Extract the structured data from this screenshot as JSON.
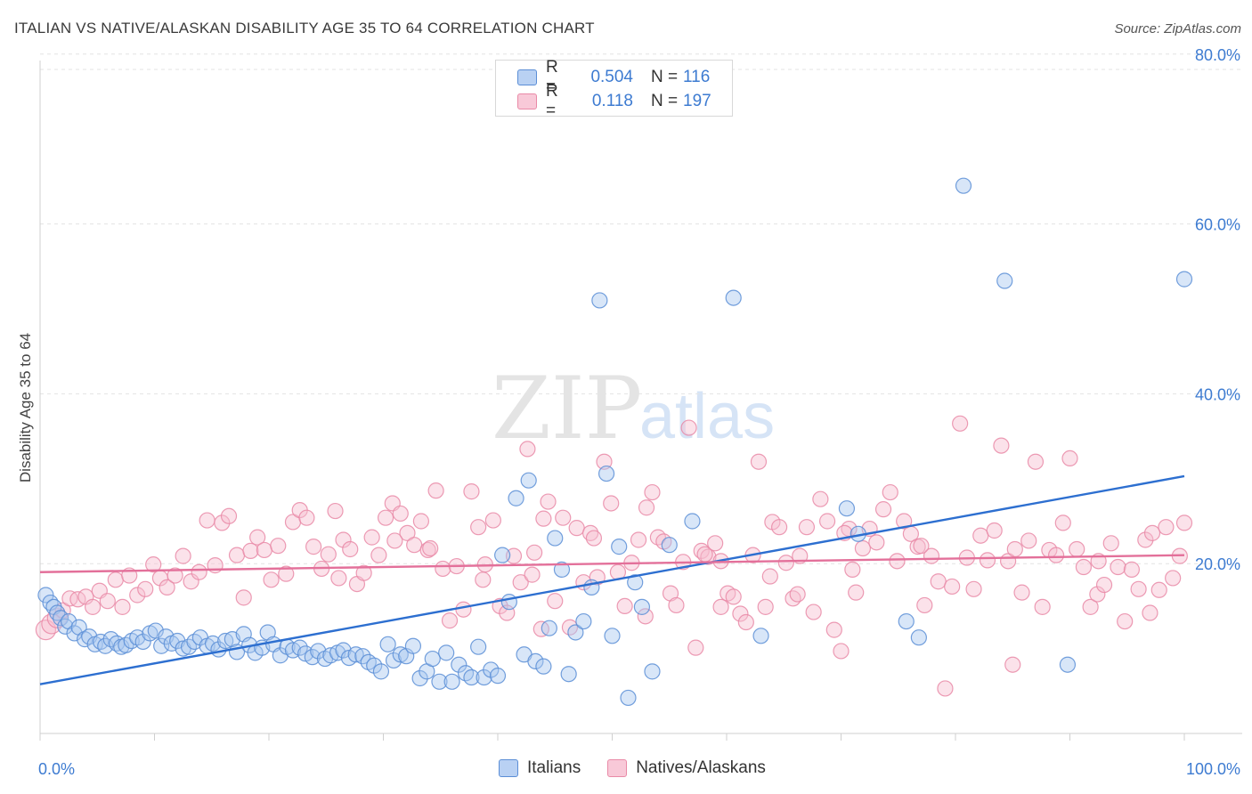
{
  "title": "ITALIAN VS NATIVE/ALASKAN DISABILITY AGE 35 TO 64 CORRELATION CHART",
  "source": "Source: ZipAtlas.com",
  "watermark": {
    "zip": "ZIP",
    "atlas": "atlas"
  },
  "legend": {
    "r_label": "R =",
    "n_label": "N =",
    "rows": [
      {
        "r_value": "0.504",
        "n_value": "116",
        "color": "#5b8ed6"
      },
      {
        "r_value": "0.118",
        "n_value": "197",
        "color": "#e98aa7"
      }
    ]
  },
  "bottom_legend": [
    {
      "label": "Italians",
      "color": "#5b8ed6"
    },
    {
      "label": "Natives/Alaskans",
      "color": "#e98aa7"
    }
  ],
  "chart_data": {
    "type": "scatter",
    "title": "ITALIAN VS NATIVE/ALASKAN DISABILITY AGE 35 TO 64 CORRELATION CHART",
    "xlabel": "",
    "ylabel": "Disability Age 35 to 64",
    "xlim": [
      0,
      100
    ],
    "ylim": [
      0,
      85
    ],
    "x_tick_labels": [
      "0.0%",
      "100.0%"
    ],
    "y_ticks": [
      20,
      40,
      60,
      80
    ],
    "y_tick_labels": [
      "20.0%",
      "40.0%",
      "60.0%",
      "80.0%"
    ],
    "grid": true,
    "series": [
      {
        "name": "Italians",
        "color": "#5b8ed6",
        "fill": "#a9c7f0",
        "trend": {
          "x": [
            0,
            100
          ],
          "y": [
            5.8,
            30.3
          ]
        },
        "points": [
          [
            0.5,
            16.3
          ],
          [
            0.9,
            15.4
          ],
          [
            1.2,
            14.9
          ],
          [
            1.5,
            14.2
          ],
          [
            1.8,
            13.6
          ],
          [
            2.2,
            12.6
          ],
          [
            2.5,
            13.2
          ],
          [
            3.0,
            11.8
          ],
          [
            3.4,
            12.5
          ],
          [
            3.9,
            11.1
          ],
          [
            4.3,
            11.4
          ],
          [
            4.8,
            10.5
          ],
          [
            5.3,
            10.8
          ],
          [
            5.7,
            10.3
          ],
          [
            6.2,
            11.1
          ],
          [
            6.7,
            10.6
          ],
          [
            7.1,
            10.2
          ],
          [
            7.5,
            10.4
          ],
          [
            8.0,
            10.9
          ],
          [
            8.5,
            11.3
          ],
          [
            9.0,
            10.8
          ],
          [
            9.6,
            11.8
          ],
          [
            10.1,
            12.1
          ],
          [
            10.6,
            10.3
          ],
          [
            11.0,
            11.4
          ],
          [
            11.5,
            10.6
          ],
          [
            12.0,
            10.9
          ],
          [
            12.5,
            10.0
          ],
          [
            13.0,
            10.2
          ],
          [
            13.5,
            10.8
          ],
          [
            14.0,
            11.3
          ],
          [
            14.6,
            10.3
          ],
          [
            15.1,
            10.6
          ],
          [
            15.6,
            9.9
          ],
          [
            16.2,
            10.9
          ],
          [
            16.8,
            11.1
          ],
          [
            17.2,
            9.6
          ],
          [
            17.8,
            11.7
          ],
          [
            18.3,
            10.4
          ],
          [
            18.8,
            9.5
          ],
          [
            19.4,
            10.1
          ],
          [
            19.9,
            11.9
          ],
          [
            20.4,
            10.5
          ],
          [
            21.0,
            9.2
          ],
          [
            21.6,
            10.2
          ],
          [
            22.1,
            9.8
          ],
          [
            22.7,
            10.1
          ],
          [
            23.2,
            9.4
          ],
          [
            23.8,
            9.0
          ],
          [
            24.3,
            9.7
          ],
          [
            24.9,
            8.8
          ],
          [
            25.4,
            9.2
          ],
          [
            26.0,
            9.5
          ],
          [
            26.5,
            9.8
          ],
          [
            27.0,
            8.9
          ],
          [
            27.6,
            9.3
          ],
          [
            28.2,
            9.1
          ],
          [
            28.7,
            8.4
          ],
          [
            29.2,
            8.0
          ],
          [
            29.8,
            7.3
          ],
          [
            30.4,
            10.5
          ],
          [
            30.9,
            8.6
          ],
          [
            31.5,
            9.3
          ],
          [
            32.0,
            9.1
          ],
          [
            32.6,
            10.3
          ],
          [
            33.2,
            6.5
          ],
          [
            33.8,
            7.3
          ],
          [
            34.3,
            8.8
          ],
          [
            34.9,
            6.1
          ],
          [
            35.5,
            9.5
          ],
          [
            36.0,
            6.1
          ],
          [
            36.6,
            8.1
          ],
          [
            37.2,
            7.1
          ],
          [
            37.7,
            6.6
          ],
          [
            38.3,
            10.2
          ],
          [
            38.8,
            6.6
          ],
          [
            39.4,
            7.5
          ],
          [
            40.0,
            6.8
          ],
          [
            40.4,
            21.0
          ],
          [
            41.0,
            15.5
          ],
          [
            41.6,
            27.7
          ],
          [
            42.3,
            9.3
          ],
          [
            42.7,
            29.8
          ],
          [
            43.3,
            8.5
          ],
          [
            44.0,
            7.9
          ],
          [
            44.5,
            12.4
          ],
          [
            45.0,
            23.0
          ],
          [
            45.6,
            19.3
          ],
          [
            46.2,
            7.0
          ],
          [
            46.8,
            11.9
          ],
          [
            47.5,
            13.2
          ],
          [
            48.2,
            17.2
          ],
          [
            48.9,
            51.0
          ],
          [
            49.5,
            30.6
          ],
          [
            50.0,
            11.5
          ],
          [
            50.6,
            22.0
          ],
          [
            51.4,
            4.2
          ],
          [
            52.0,
            17.8
          ],
          [
            52.6,
            14.9
          ],
          [
            53.5,
            7.3
          ],
          [
            55.0,
            22.2
          ],
          [
            57.0,
            25.0
          ],
          [
            60.6,
            51.3
          ],
          [
            63.0,
            11.5
          ],
          [
            70.5,
            26.5
          ],
          [
            71.5,
            23.5
          ],
          [
            75.7,
            13.2
          ],
          [
            76.8,
            11.3
          ],
          [
            80.7,
            64.5
          ],
          [
            84.3,
            53.3
          ],
          [
            89.8,
            8.1
          ],
          [
            100.0,
            53.5
          ]
        ]
      },
      {
        "name": "Natives/Alaskans",
        "color": "#e98aa7",
        "fill": "#f6bfd0",
        "trend": {
          "x": [
            0,
            100
          ],
          "y": [
            19.0,
            21.0
          ]
        },
        "points": [
          [
            0.5,
            12.2
          ],
          [
            1.0,
            12.9
          ],
          [
            1.5,
            13.6
          ],
          [
            2.0,
            14.5
          ],
          [
            2.6,
            15.9
          ],
          [
            3.3,
            15.8
          ],
          [
            4.0,
            16.1
          ],
          [
            4.6,
            14.9
          ],
          [
            5.2,
            16.8
          ],
          [
            5.9,
            15.6
          ],
          [
            6.6,
            18.1
          ],
          [
            7.2,
            14.9
          ],
          [
            7.8,
            18.6
          ],
          [
            8.5,
            16.3
          ],
          [
            9.2,
            17.0
          ],
          [
            9.9,
            19.9
          ],
          [
            10.5,
            18.3
          ],
          [
            11.1,
            17.2
          ],
          [
            11.8,
            18.6
          ],
          [
            12.5,
            20.9
          ],
          [
            13.2,
            17.9
          ],
          [
            13.9,
            19.0
          ],
          [
            14.6,
            25.1
          ],
          [
            15.3,
            19.8
          ],
          [
            15.9,
            24.8
          ],
          [
            16.5,
            25.6
          ],
          [
            17.2,
            21.0
          ],
          [
            17.8,
            16.0
          ],
          [
            18.4,
            21.5
          ],
          [
            19.0,
            23.1
          ],
          [
            19.6,
            21.6
          ],
          [
            20.2,
            18.1
          ],
          [
            20.8,
            22.1
          ],
          [
            21.5,
            18.8
          ],
          [
            22.1,
            24.9
          ],
          [
            22.7,
            26.3
          ],
          [
            23.3,
            25.4
          ],
          [
            23.9,
            22.0
          ],
          [
            24.6,
            19.4
          ],
          [
            25.2,
            21.1
          ],
          [
            25.8,
            26.2
          ],
          [
            26.5,
            22.8
          ],
          [
            27.1,
            21.7
          ],
          [
            27.7,
            17.6
          ],
          [
            28.3,
            18.9
          ],
          [
            29.0,
            23.1
          ],
          [
            29.6,
            21.0
          ],
          [
            30.2,
            25.4
          ],
          [
            30.8,
            27.1
          ],
          [
            31.5,
            25.9
          ],
          [
            32.1,
            23.6
          ],
          [
            32.7,
            22.2
          ],
          [
            33.3,
            25.0
          ],
          [
            33.9,
            21.6
          ],
          [
            34.6,
            28.6
          ],
          [
            35.2,
            19.4
          ],
          [
            35.8,
            13.3
          ],
          [
            36.4,
            19.7
          ],
          [
            37.0,
            14.6
          ],
          [
            37.7,
            28.5
          ],
          [
            38.3,
            24.3
          ],
          [
            38.9,
            19.9
          ],
          [
            39.6,
            25.1
          ],
          [
            40.2,
            15.0
          ],
          [
            40.8,
            14.2
          ],
          [
            41.4,
            20.9
          ],
          [
            42.0,
            17.8
          ],
          [
            42.6,
            33.5
          ],
          [
            43.2,
            21.3
          ],
          [
            43.8,
            12.3
          ],
          [
            44.4,
            27.3
          ],
          [
            45.0,
            15.6
          ],
          [
            45.7,
            25.4
          ],
          [
            46.3,
            12.5
          ],
          [
            46.9,
            24.2
          ],
          [
            47.5,
            17.8
          ],
          [
            48.1,
            23.6
          ],
          [
            48.7,
            18.4
          ],
          [
            49.3,
            32.0
          ],
          [
            49.9,
            27.1
          ],
          [
            50.5,
            19.0
          ],
          [
            51.1,
            15.0
          ],
          [
            51.7,
            20.1
          ],
          [
            52.3,
            22.8
          ],
          [
            52.9,
            13.8
          ],
          [
            53.5,
            28.4
          ],
          [
            54.0,
            23.1
          ],
          [
            54.5,
            22.6
          ],
          [
            55.1,
            16.5
          ],
          [
            55.6,
            15.1
          ],
          [
            56.2,
            20.2
          ],
          [
            56.7,
            36.0
          ],
          [
            57.3,
            10.1
          ],
          [
            57.8,
            21.5
          ],
          [
            58.4,
            20.8
          ],
          [
            59.0,
            22.4
          ],
          [
            59.5,
            14.9
          ],
          [
            60.1,
            16.5
          ],
          [
            60.6,
            16.1
          ],
          [
            61.2,
            14.1
          ],
          [
            61.7,
            13.1
          ],
          [
            62.3,
            21.0
          ],
          [
            62.8,
            32.0
          ],
          [
            63.4,
            14.9
          ],
          [
            64.0,
            24.9
          ],
          [
            64.6,
            24.3
          ],
          [
            65.2,
            20.1
          ],
          [
            65.8,
            15.9
          ],
          [
            66.4,
            20.9
          ],
          [
            67.0,
            24.3
          ],
          [
            67.6,
            14.3
          ],
          [
            68.2,
            27.6
          ],
          [
            68.8,
            25.0
          ],
          [
            69.4,
            12.2
          ],
          [
            70.0,
            9.7
          ],
          [
            70.7,
            24.1
          ],
          [
            71.3,
            16.6
          ],
          [
            71.9,
            21.8
          ],
          [
            72.5,
            24.1
          ],
          [
            73.1,
            22.5
          ],
          [
            73.7,
            26.4
          ],
          [
            74.3,
            28.4
          ],
          [
            74.9,
            20.3
          ],
          [
            75.5,
            25.0
          ],
          [
            76.1,
            23.5
          ],
          [
            76.7,
            22.0
          ],
          [
            77.3,
            15.1
          ],
          [
            77.9,
            20.9
          ],
          [
            78.5,
            17.9
          ],
          [
            79.1,
            5.3
          ],
          [
            79.7,
            17.3
          ],
          [
            80.4,
            36.5
          ],
          [
            81.0,
            20.7
          ],
          [
            81.6,
            17.0
          ],
          [
            82.2,
            23.3
          ],
          [
            82.8,
            20.4
          ],
          [
            83.4,
            23.9
          ],
          [
            84.0,
            33.9
          ],
          [
            84.6,
            20.3
          ],
          [
            85.2,
            21.7
          ],
          [
            85.8,
            16.6
          ],
          [
            86.4,
            22.7
          ],
          [
            87.0,
            32.0
          ],
          [
            87.6,
            14.9
          ],
          [
            88.2,
            21.6
          ],
          [
            88.8,
            21.0
          ],
          [
            89.4,
            24.8
          ],
          [
            90.0,
            32.4
          ],
          [
            90.6,
            21.7
          ],
          [
            91.2,
            19.6
          ],
          [
            91.8,
            14.9
          ],
          [
            92.4,
            16.4
          ],
          [
            93.0,
            17.5
          ],
          [
            93.6,
            22.4
          ],
          [
            94.2,
            19.6
          ],
          [
            94.8,
            13.2
          ],
          [
            95.4,
            19.3
          ],
          [
            96.0,
            17.0
          ],
          [
            96.6,
            22.8
          ],
          [
            97.2,
            23.6
          ],
          [
            97.8,
            16.9
          ],
          [
            98.4,
            24.3
          ],
          [
            99.0,
            18.3
          ],
          [
            99.6,
            20.9
          ],
          [
            100.0,
            24.8
          ],
          [
            26.1,
            18.3
          ],
          [
            34.1,
            21.8
          ],
          [
            48.4,
            23.0
          ],
          [
            58.1,
            21.1
          ],
          [
            63.8,
            18.5
          ],
          [
            71.0,
            19.3
          ],
          [
            66.2,
            16.4
          ],
          [
            53.0,
            26.6
          ],
          [
            38.7,
            18.1
          ],
          [
            31.0,
            22.7
          ],
          [
            44.0,
            25.3
          ],
          [
            43.0,
            18.7
          ],
          [
            59.5,
            20.3
          ],
          [
            70.3,
            23.6
          ],
          [
            77.0,
            22.1
          ],
          [
            85.0,
            8.1
          ],
          [
            92.5,
            20.3
          ],
          [
            97.0,
            14.2
          ]
        ]
      }
    ]
  }
}
